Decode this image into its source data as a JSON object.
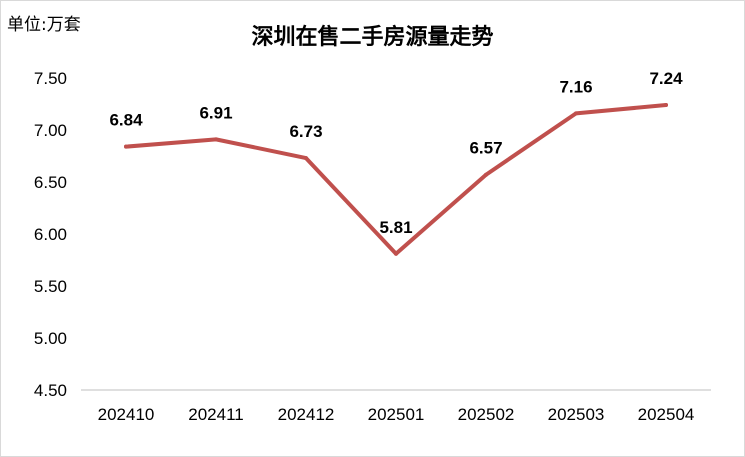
{
  "chart_data": {
    "type": "line",
    "title": "深圳在售二手房源量走势",
    "unit_label": "单位:万套",
    "categories": [
      "202410",
      "202411",
      "202412",
      "202501",
      "202502",
      "202503",
      "202504"
    ],
    "series": [
      {
        "values": [
          6.84,
          6.91,
          6.73,
          5.81,
          6.57,
          7.16,
          7.24
        ],
        "color": "#c0504d"
      }
    ],
    "data_labels": [
      "6.84",
      "6.91",
      "6.73",
      "5.81",
      "6.57",
      "7.16",
      "7.24"
    ],
    "ylim": [
      4.5,
      7.5
    ],
    "yticks": [
      "4.50",
      "5.00",
      "5.50",
      "6.00",
      "6.50",
      "7.00",
      "7.50"
    ],
    "grid": false,
    "legend": "none",
    "axis_color": "#bfbfbf"
  }
}
